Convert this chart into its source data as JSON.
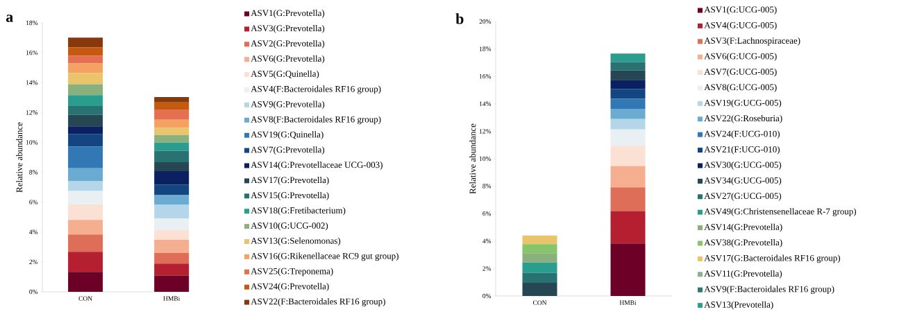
{
  "chart_data": [
    {
      "type": "bar",
      "title": "a",
      "stacked": true,
      "legend": "right",
      "ylabel": "Relative abundance",
      "categories": [
        "CON",
        "HMBi"
      ],
      "ylim": [
        0,
        18
      ],
      "yticks": [
        {
          "value": 0,
          "label": "0%"
        },
        {
          "value": 2,
          "label": "2%"
        },
        {
          "value": 4,
          "label": "4%"
        },
        {
          "value": 6,
          "label": "6%"
        },
        {
          "value": 8,
          "label": "8%"
        },
        {
          "value": 10,
          "label": "10%"
        },
        {
          "value": 12,
          "label": "12%"
        },
        {
          "value": 14,
          "label": "14%"
        },
        {
          "value": 16,
          "label": "16%"
        },
        {
          "value": 18,
          "label": "18%"
        }
      ],
      "series": [
        {
          "name": "ASV1(G:Prevotella)",
          "color": "#6d0026",
          "values": [
            1.33,
            1.08
          ]
        },
        {
          "name": "ASV3(G:Prevotella)",
          "color": "#b52030",
          "values": [
            1.35,
            0.81
          ]
        },
        {
          "name": "ASV2(G:Prevotella)",
          "color": "#de6e58",
          "values": [
            1.16,
            0.71
          ]
        },
        {
          "name": "ASV6(G:Prevotella)",
          "color": "#f5ae90",
          "values": [
            0.97,
            0.88
          ]
        },
        {
          "name": "ASV5(G:Quinella)",
          "color": "#fbe0d4",
          "values": [
            1.03,
            0.67
          ]
        },
        {
          "name": "ASV4(F:Bacteroidales RF16 group)",
          "color": "#e8f0f4",
          "values": [
            0.91,
            0.77
          ]
        },
        {
          "name": "ASV9(G:Prevotella)",
          "color": "#b5d6e8",
          "values": [
            0.65,
            0.9
          ]
        },
        {
          "name": "ASV8(F:Bacteroidales RF16 group)",
          "color": "#6aabd2",
          "values": [
            0.87,
            0.65
          ]
        },
        {
          "name": "ASV19(G:Quinella)",
          "color": "#3178b5",
          "values": [
            1.45,
            0
          ]
        },
        {
          "name": "ASV7(G:Prevotella)",
          "color": "#134580",
          "values": [
            0.84,
            0.71
          ]
        },
        {
          "name": "ASV14(G:Prevotellaceae UCG-003)",
          "color": "#0b2060",
          "values": [
            0.51,
            0.89
          ]
        },
        {
          "name": "ASV17(G:Prevotella)",
          "color": "#264653",
          "values": [
            0.77,
            0.61
          ]
        },
        {
          "name": "ASV15(G:Prevotella)",
          "color": "#287271",
          "values": [
            0.59,
            0.76
          ]
        },
        {
          "name": "ASV18(G:Fretibacterium)",
          "color": "#2a9d8f",
          "values": [
            0.73,
            0.56
          ]
        },
        {
          "name": "ASV10(G:UCG-002)",
          "color": "#8ab17d",
          "values": [
            0.73,
            0.5
          ]
        },
        {
          "name": "ASV13(G:Selenomonas)",
          "color": "#e9c46a",
          "values": [
            0.75,
            0.48
          ]
        },
        {
          "name": "ASV16(G:Rikenellaceae RC9 gut group)",
          "color": "#f4a261",
          "values": [
            0.64,
            0.54
          ]
        },
        {
          "name": "ASV25(G:Treponema)",
          "color": "#e76f51",
          "values": [
            0.51,
            0.65
          ]
        },
        {
          "name": "ASV24(G:Prevotella)",
          "color": "#c4590f",
          "values": [
            0.56,
            0.51
          ]
        },
        {
          "name": "ASV22(F:Bacteroidales RF16 group)",
          "color": "#87390c",
          "values": [
            0.66,
            0.35
          ]
        }
      ]
    },
    {
      "type": "bar",
      "title": "b",
      "stacked": true,
      "legend": "right",
      "ylabel": "Relative abundance",
      "categories": [
        "CON",
        "HMBi"
      ],
      "ylim": [
        0,
        20
      ],
      "yticks": [
        {
          "value": 0,
          "label": "0%"
        },
        {
          "value": 2,
          "label": "2%"
        },
        {
          "value": 4,
          "label": "4%"
        },
        {
          "value": 6,
          "label": "6%"
        },
        {
          "value": 8,
          "label": "8%"
        },
        {
          "value": 10,
          "label": "10%"
        },
        {
          "value": 12,
          "label": "12%"
        },
        {
          "value": 14,
          "label": "14%"
        },
        {
          "value": 16,
          "label": "16%"
        },
        {
          "value": 18,
          "label": "18%"
        },
        {
          "value": 20,
          "label": "20%"
        }
      ],
      "series": [
        {
          "name": "ASV1(G:UCG-005)",
          "color": "#6d0026",
          "values": [
            0,
            3.82
          ]
        },
        {
          "name": "ASV4(G:UCG-005)",
          "color": "#b52030",
          "values": [
            0,
            2.36
          ]
        },
        {
          "name": "ASV3(F:Lachnospiraceae)",
          "color": "#de6e58",
          "values": [
            0,
            1.74
          ]
        },
        {
          "name": "ASV6(G:UCG-005)",
          "color": "#f5ae90",
          "values": [
            0,
            1.55
          ]
        },
        {
          "name": "ASV7(G:UCG-005)",
          "color": "#fbe0d4",
          "values": [
            0,
            1.48
          ]
        },
        {
          "name": "ASV8(G:UCG-005)",
          "color": "#e8f0f4",
          "values": [
            0,
            1.18
          ]
        },
        {
          "name": "ASV19(G:UCG-005)",
          "color": "#b5d6e8",
          "values": [
            0,
            0.76
          ]
        },
        {
          "name": "ASV22(G:Roseburia)",
          "color": "#6aabd2",
          "values": [
            0,
            0.74
          ]
        },
        {
          "name": "ASV24(F:UCG-010)",
          "color": "#3178b5",
          "values": [
            0,
            0.74
          ]
        },
        {
          "name": "ASV21(F:UCG-010)",
          "color": "#134580",
          "values": [
            0,
            0.71
          ]
        },
        {
          "name": "ASV30(G:UCG-005)",
          "color": "#0b2060",
          "values": [
            0,
            0.67
          ]
        },
        {
          "name": "ASV34(G:UCG-005)",
          "color": "#264653",
          "values": [
            0.96,
            0.68
          ]
        },
        {
          "name": "ASV27(G:UCG-005)",
          "color": "#287271",
          "values": [
            0.72,
            0.62
          ]
        },
        {
          "name": "ASV49(G:Christensenellaceae R-7 group)",
          "color": "#2a9d8f",
          "values": [
            0.75,
            0.61
          ]
        },
        {
          "name": "ASV14(G:Prevotella)",
          "color": "#8ab17d",
          "values": [
            0.69,
            0
          ]
        },
        {
          "name": "ASV38(G:Prevotella)",
          "color": "#88c46a",
          "values": [
            0.65,
            0
          ]
        },
        {
          "name": "ASV17(G:Bacteroidales RF16 group)",
          "color": "#e9c46a",
          "values": [
            0.64,
            0
          ]
        },
        {
          "name": "ASV11(G:Prevotella)",
          "color": "#8cb095",
          "values": [
            0,
            0
          ]
        },
        {
          "name": "ASV9(F:Bacteroidales RF16 group)",
          "color": "#2b7a72",
          "values": [
            0,
            0
          ]
        },
        {
          "name": "ASV13(Prevotella)",
          "color": "#2ba08f",
          "values": [
            0,
            0
          ]
        }
      ]
    }
  ]
}
